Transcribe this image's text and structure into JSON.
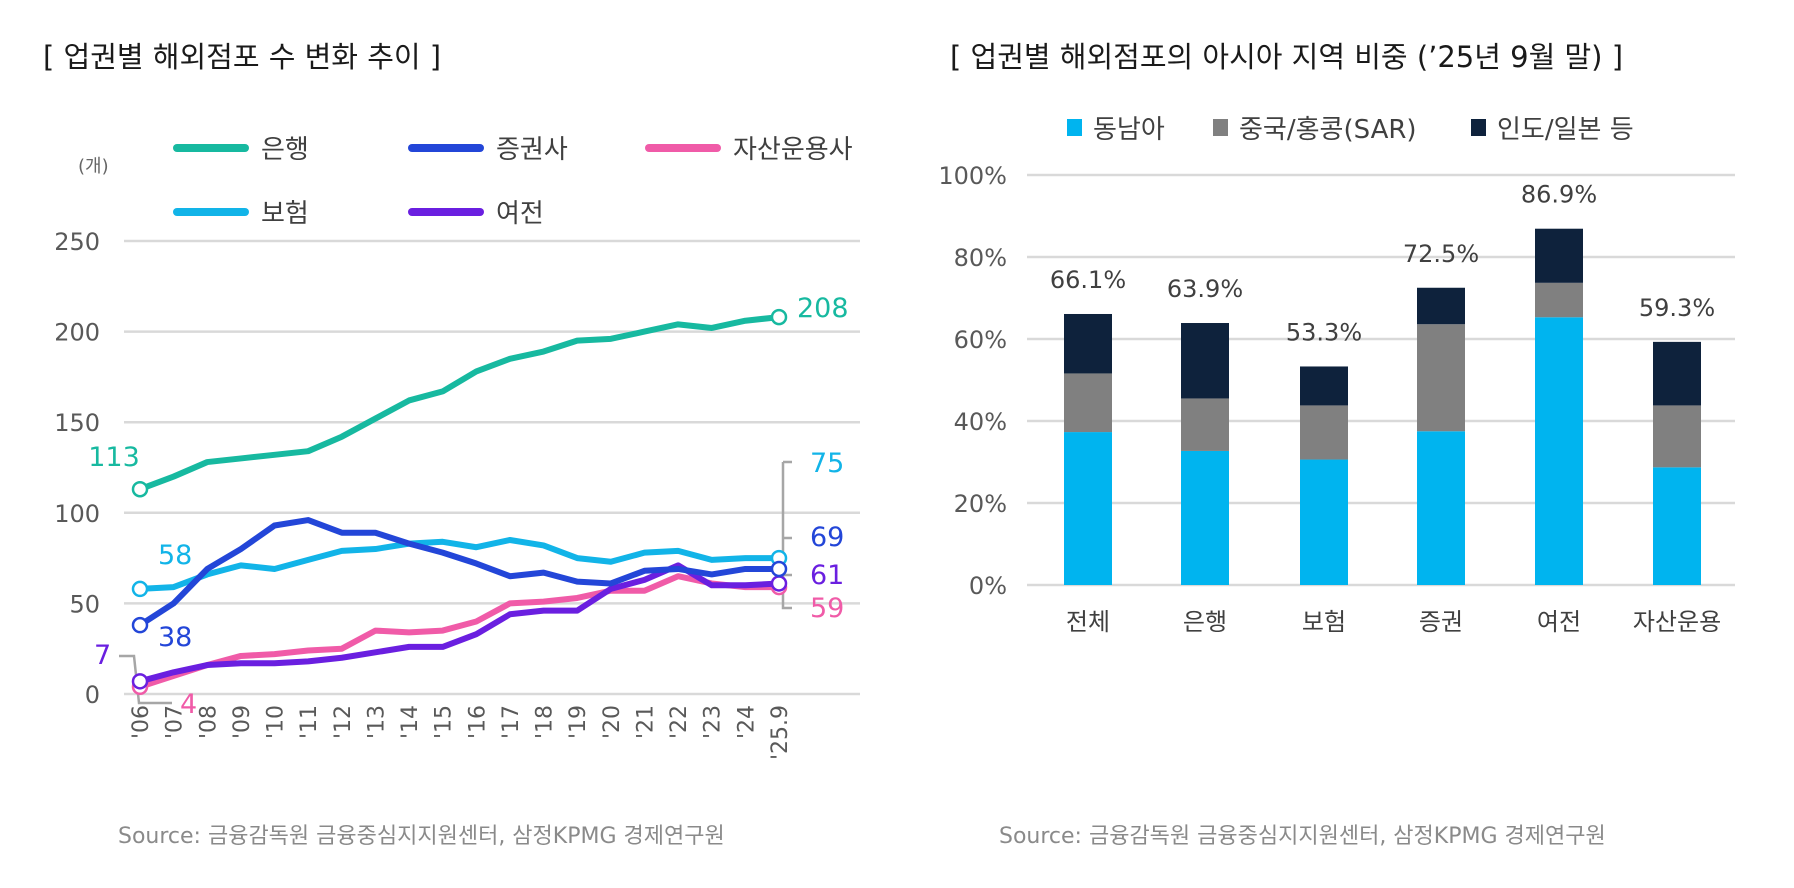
{
  "left": {
    "title": "[ 업권별 해외점포 수 변화 추이 ]",
    "source": "Source: 금융감독원 금융중심지지원센터, 삼정KPMG 경제연구원"
  },
  "right": {
    "title": "[ 업권별 해외점포의 아시아 지역 비중 (’25년 9월 말) ]",
    "source": "Source: 금융감독원 금융중심지지원센터, 삼정KPMG 경제연구원"
  },
  "chart_data": [
    {
      "type": "line",
      "unit_label": "(개)",
      "ylim": [
        0,
        250
      ],
      "yticks": [
        0,
        50,
        100,
        150,
        200,
        250
      ],
      "grid": true,
      "legend_position": "top",
      "categories": [
        "'06",
        "'07",
        "'08",
        "'09",
        "'10",
        "'11",
        "'12",
        "'13",
        "'14",
        "'15",
        "'16",
        "'17",
        "'18",
        "'19",
        "'20",
        "'21",
        "'22",
        "'23",
        "'24",
        "'25.9"
      ],
      "series": [
        {
          "name": "은행",
          "color": "#17b9a0",
          "values": [
            113,
            120,
            128,
            130,
            132,
            134,
            142,
            152,
            162,
            167,
            178,
            185,
            189,
            195,
            196,
            200,
            204,
            202,
            206,
            208
          ],
          "start_label": "113",
          "end_label": "208"
        },
        {
          "name": "증권사",
          "color": "#2346d8",
          "values": [
            38,
            50,
            69,
            80,
            93,
            96,
            89,
            89,
            83,
            78,
            72,
            65,
            67,
            62,
            61,
            68,
            69,
            66,
            69,
            69
          ],
          "start_label": "38",
          "end_label": "69"
        },
        {
          "name": "자산운용사",
          "color": "#f05ba8",
          "values": [
            4,
            10,
            16,
            21,
            22,
            24,
            25,
            35,
            34,
            35,
            40,
            50,
            51,
            53,
            57,
            57,
            65,
            61,
            59,
            59
          ],
          "start_label": "4",
          "end_label": "59"
        },
        {
          "name": "보험",
          "color": "#12b4e8",
          "values": [
            58,
            59,
            66,
            71,
            69,
            74,
            79,
            80,
            83,
            84,
            81,
            85,
            82,
            75,
            73,
            78,
            79,
            74,
            75,
            75
          ],
          "start_label": "58",
          "end_label": "75"
        },
        {
          "name": "여전",
          "color": "#6a1fe0",
          "values": [
            7,
            12,
            16,
            17,
            17,
            18,
            20,
            23,
            26,
            26,
            33,
            44,
            46,
            46,
            58,
            63,
            71,
            60,
            60,
            61
          ],
          "start_label": "7",
          "end_label": "61"
        }
      ]
    },
    {
      "type": "bar",
      "stacked": true,
      "ylim": [
        0,
        100
      ],
      "yticks": [
        "0%",
        "20%",
        "40%",
        "60%",
        "80%",
        "100%"
      ],
      "grid": true,
      "legend_position": "top",
      "categories": [
        "전체",
        "은행",
        "보험",
        "증권",
        "여전",
        "자산운용"
      ],
      "series": [
        {
          "name": "동남아",
          "color": "#00b4ef",
          "values": [
            37.3,
            32.7,
            30.6,
            37.5,
            65.3,
            28.7
          ]
        },
        {
          "name": "중국/홍콩(SAR)",
          "color": "#808080",
          "values": [
            14.3,
            12.8,
            13.2,
            26.1,
            8.4,
            15.1
          ]
        },
        {
          "name": "인도/일본 등",
          "color": "#0e223c",
          "values": [
            14.5,
            18.4,
            9.5,
            8.9,
            13.2,
            15.5
          ]
        }
      ],
      "totals": [
        "66.1%",
        "63.9%",
        "53.3%",
        "72.5%",
        "86.9%",
        "59.3%"
      ]
    }
  ]
}
